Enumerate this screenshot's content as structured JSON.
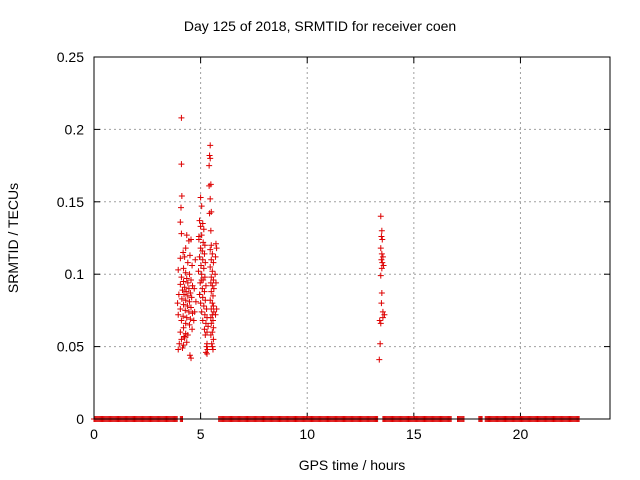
{
  "chart_data": {
    "type": "scatter",
    "title": "Day 125 of 2018, SRMTID for receiver coen",
    "xlabel": "GPS time / hours",
    "ylabel": "SRMTID / TECUs",
    "xlim": [
      0,
      24.2
    ],
    "ylim": [
      0,
      0.25
    ],
    "xticks": [
      0,
      5,
      10,
      15,
      20
    ],
    "xtick_labels": [
      "0",
      "5",
      "10",
      "15",
      "20"
    ],
    "yticks": [
      0,
      0.05,
      0.1,
      0.15,
      0.2,
      0.25
    ],
    "ytick_labels": [
      "0",
      "0.05",
      "0.1",
      "0.15",
      "0.2",
      "0.25"
    ],
    "grid": true,
    "marker": "+",
    "color": "#dd0000",
    "zero_segments": [
      {
        "from": 0.0,
        "to": 3.9
      },
      {
        "from": 4.05,
        "to": 4.15
      },
      {
        "from": 5.85,
        "to": 13.3
      },
      {
        "from": 13.55,
        "to": 16.75
      },
      {
        "from": 17.05,
        "to": 17.35
      },
      {
        "from": 18.05,
        "to": 18.2
      },
      {
        "from": 18.35,
        "to": 22.75
      }
    ],
    "zero_spacing": 0.05,
    "series": [
      {
        "name": "SRMTID",
        "points": [
          [
            4.1,
            0.208
          ],
          [
            4.1,
            0.176
          ],
          [
            4.12,
            0.154
          ],
          [
            4.08,
            0.146
          ],
          [
            4.05,
            0.136
          ],
          [
            4.1,
            0.128
          ],
          [
            4.35,
            0.127
          ],
          [
            4.45,
            0.123
          ],
          [
            4.55,
            0.124
          ],
          [
            4.3,
            0.118
          ],
          [
            4.18,
            0.115
          ],
          [
            4.5,
            0.113
          ],
          [
            4.25,
            0.112
          ],
          [
            4.05,
            0.111
          ],
          [
            4.4,
            0.108
          ],
          [
            4.6,
            0.106
          ],
          [
            4.2,
            0.104
          ],
          [
            3.95,
            0.103
          ],
          [
            4.3,
            0.101
          ],
          [
            4.48,
            0.1
          ],
          [
            4.1,
            0.098
          ],
          [
            4.35,
            0.097
          ],
          [
            4.55,
            0.096
          ],
          [
            4.2,
            0.095
          ],
          [
            4.4,
            0.094
          ],
          [
            4.05,
            0.093
          ],
          [
            4.62,
            0.092
          ],
          [
            4.25,
            0.091
          ],
          [
            4.45,
            0.09
          ],
          [
            4.15,
            0.089
          ],
          [
            4.32,
            0.088
          ],
          [
            4.52,
            0.087
          ],
          [
            3.98,
            0.086
          ],
          [
            4.22,
            0.086
          ],
          [
            4.4,
            0.085
          ],
          [
            4.58,
            0.084
          ],
          [
            4.12,
            0.083
          ],
          [
            4.3,
            0.082
          ],
          [
            4.48,
            0.081
          ],
          [
            3.92,
            0.08
          ],
          [
            4.2,
            0.079
          ],
          [
            4.38,
            0.078
          ],
          [
            4.55,
            0.077
          ],
          [
            4.05,
            0.076
          ],
          [
            4.28,
            0.075
          ],
          [
            4.45,
            0.074
          ],
          [
            4.62,
            0.073
          ],
          [
            3.95,
            0.072
          ],
          [
            4.18,
            0.071
          ],
          [
            4.35,
            0.07
          ],
          [
            4.52,
            0.069
          ],
          [
            4.1,
            0.068
          ],
          [
            4.3,
            0.066
          ],
          [
            4.48,
            0.065
          ],
          [
            4.2,
            0.063
          ],
          [
            4.05,
            0.06
          ],
          [
            4.4,
            0.058
          ],
          [
            4.25,
            0.056
          ],
          [
            4.1,
            0.055
          ],
          [
            4.35,
            0.053
          ],
          [
            4.0,
            0.052
          ],
          [
            4.2,
            0.051
          ],
          [
            4.15,
            0.049
          ],
          [
            3.95,
            0.048
          ],
          [
            4.5,
            0.044
          ],
          [
            4.55,
            0.042
          ],
          [
            4.22,
            0.057
          ],
          [
            4.6,
            0.062
          ],
          [
            4.3,
            0.059
          ],
          [
            4.75,
            0.11
          ],
          [
            4.7,
            0.09
          ],
          [
            4.78,
            0.081
          ],
          [
            4.72,
            0.074
          ],
          [
            4.68,
            0.068
          ],
          [
            5.0,
            0.153
          ],
          [
            5.05,
            0.147
          ],
          [
            4.95,
            0.137
          ],
          [
            5.1,
            0.135
          ],
          [
            5.0,
            0.133
          ],
          [
            5.15,
            0.131
          ],
          [
            5.05,
            0.127
          ],
          [
            4.92,
            0.124
          ],
          [
            5.12,
            0.122
          ],
          [
            5.2,
            0.12
          ],
          [
            5.0,
            0.118
          ],
          [
            5.08,
            0.116
          ],
          [
            5.18,
            0.114
          ],
          [
            4.95,
            0.112
          ],
          [
            5.1,
            0.11
          ],
          [
            5.22,
            0.108
          ],
          [
            5.02,
            0.106
          ],
          [
            5.15,
            0.104
          ],
          [
            4.9,
            0.102
          ],
          [
            5.05,
            0.1
          ],
          [
            5.2,
            0.098
          ],
          [
            5.12,
            0.096
          ],
          [
            4.98,
            0.094
          ],
          [
            5.25,
            0.092
          ],
          [
            5.08,
            0.09
          ],
          [
            5.18,
            0.088
          ],
          [
            4.95,
            0.086
          ],
          [
            5.1,
            0.084
          ],
          [
            5.22,
            0.082
          ],
          [
            5.0,
            0.08
          ],
          [
            5.15,
            0.078
          ],
          [
            5.28,
            0.076
          ],
          [
            5.05,
            0.074
          ],
          [
            5.2,
            0.072
          ],
          [
            5.3,
            0.07
          ],
          [
            5.1,
            0.068
          ],
          [
            5.25,
            0.066
          ],
          [
            5.35,
            0.064
          ],
          [
            5.18,
            0.062
          ],
          [
            5.3,
            0.06
          ],
          [
            5.22,
            0.058
          ],
          [
            5.3,
            0.052
          ],
          [
            5.28,
            0.05
          ],
          [
            5.25,
            0.046
          ],
          [
            5.3,
            0.045
          ],
          [
            5.32,
            0.048
          ],
          [
            4.92,
            0.126
          ],
          [
            5.05,
            0.096
          ],
          [
            5.45,
            0.189
          ],
          [
            5.42,
            0.182
          ],
          [
            5.45,
            0.18
          ],
          [
            5.4,
            0.175
          ],
          [
            5.48,
            0.162
          ],
          [
            5.4,
            0.161
          ],
          [
            5.45,
            0.152
          ],
          [
            5.5,
            0.143
          ],
          [
            5.42,
            0.142
          ],
          [
            5.48,
            0.13
          ],
          [
            5.5,
            0.12
          ],
          [
            5.45,
            0.117
          ],
          [
            5.55,
            0.114
          ],
          [
            5.5,
            0.11
          ],
          [
            5.6,
            0.108
          ],
          [
            5.45,
            0.105
          ],
          [
            5.55,
            0.102
          ],
          [
            5.5,
            0.098
          ],
          [
            5.6,
            0.096
          ],
          [
            5.48,
            0.094
          ],
          [
            5.55,
            0.092
          ],
          [
            5.62,
            0.09
          ],
          [
            5.5,
            0.088
          ],
          [
            5.58,
            0.085
          ],
          [
            5.45,
            0.082
          ],
          [
            5.55,
            0.08
          ],
          [
            5.6,
            0.078
          ],
          [
            5.5,
            0.076
          ],
          [
            5.62,
            0.074
          ],
          [
            5.55,
            0.072
          ],
          [
            5.48,
            0.07
          ],
          [
            5.58,
            0.068
          ],
          [
            5.5,
            0.066
          ],
          [
            5.6,
            0.063
          ],
          [
            5.55,
            0.06
          ],
          [
            5.48,
            0.058
          ],
          [
            5.6,
            0.055
          ],
          [
            5.52,
            0.052
          ],
          [
            5.55,
            0.05
          ],
          [
            5.58,
            0.048
          ],
          [
            5.72,
            0.121
          ],
          [
            5.75,
            0.118
          ],
          [
            5.7,
            0.112
          ],
          [
            5.68,
            0.1
          ],
          [
            5.72,
            0.094
          ],
          [
            5.75,
            0.076
          ],
          [
            5.7,
            0.072
          ],
          [
            13.45,
            0.14
          ],
          [
            13.5,
            0.13
          ],
          [
            13.48,
            0.126
          ],
          [
            13.52,
            0.124
          ],
          [
            13.45,
            0.118
          ],
          [
            13.5,
            0.114
          ],
          [
            13.55,
            0.112
          ],
          [
            13.48,
            0.11
          ],
          [
            13.52,
            0.108
          ],
          [
            13.58,
            0.106
          ],
          [
            13.5,
            0.104
          ],
          [
            13.45,
            0.099
          ],
          [
            13.5,
            0.087
          ],
          [
            13.48,
            0.08
          ],
          [
            13.55,
            0.074
          ],
          [
            13.62,
            0.072
          ],
          [
            13.55,
            0.07
          ],
          [
            13.4,
            0.068
          ],
          [
            13.45,
            0.066
          ],
          [
            13.42,
            0.052
          ],
          [
            13.38,
            0.041
          ]
        ]
      }
    ]
  }
}
